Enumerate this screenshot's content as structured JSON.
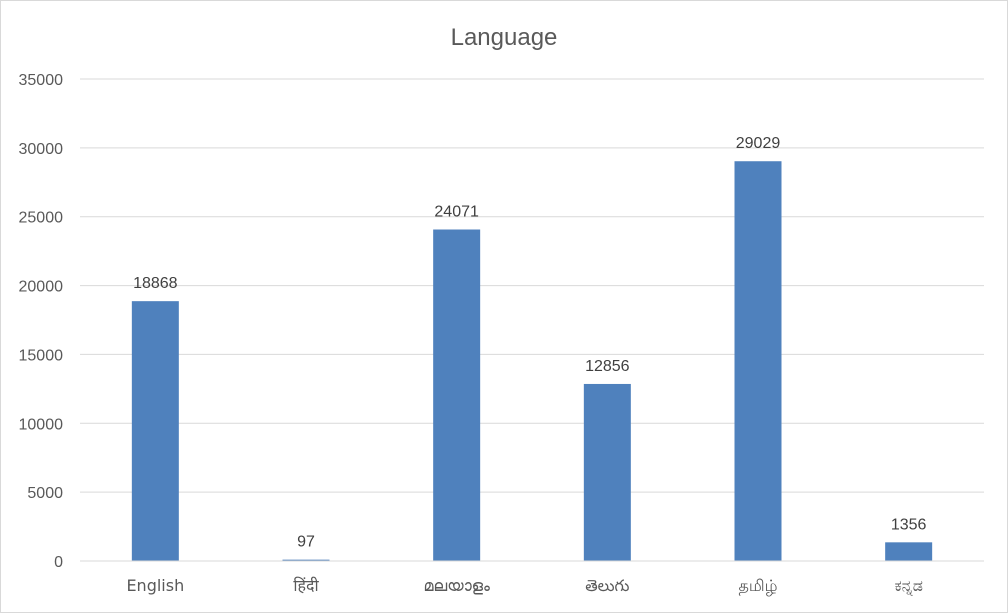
{
  "chart_data": {
    "type": "bar",
    "title": "Language",
    "xlabel": "",
    "ylabel": "",
    "categories": [
      "English",
      "हिंदी",
      "മലയാളം",
      "తెలుగు",
      "தமிழ்",
      "ಕನ್ನಡ"
    ],
    "values": [
      18868,
      97,
      24071,
      12856,
      29029,
      1356
    ],
    "data_labels": [
      "18868",
      "97",
      "24071",
      "12856",
      "29029",
      "1356"
    ],
    "ylim": [
      0,
      35000
    ],
    "y_ticks": [
      0,
      5000,
      10000,
      15000,
      20000,
      25000,
      30000,
      35000
    ],
    "y_tick_labels": [
      "0",
      "5000",
      "10000",
      "15000",
      "20000",
      "25000",
      "30000",
      "35000"
    ],
    "grid": true,
    "legend": "none",
    "colors": {
      "bar": "#4f81bd",
      "grid": "#d9d9d9",
      "text": "#595959"
    }
  }
}
